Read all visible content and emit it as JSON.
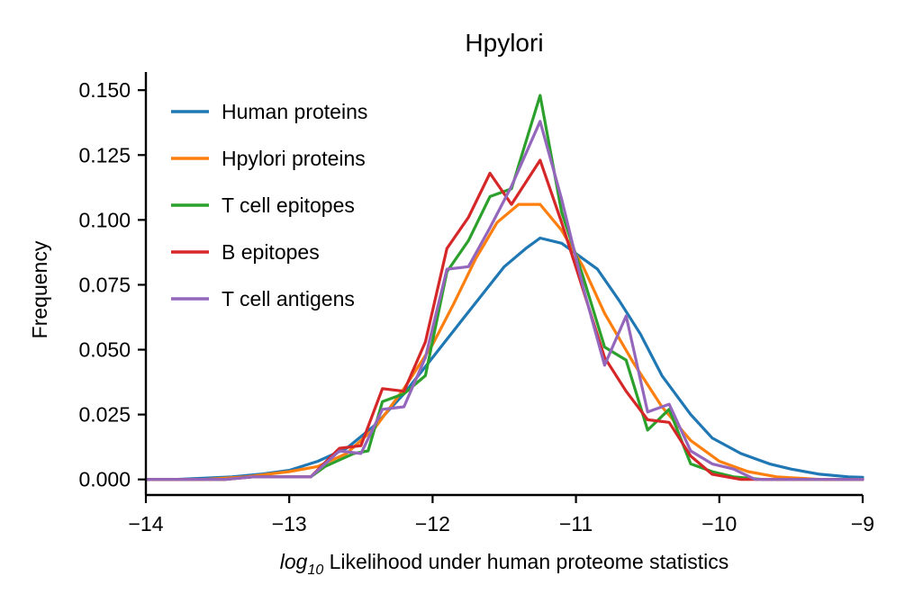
{
  "chart_data": {
    "type": "line",
    "title": "Hpylori",
    "xlabel_prefix": "log",
    "xlabel_sub": "10",
    "xlabel_rest": " Likelihood under human proteome statistics",
    "ylabel": "Frequency",
    "xlim": [
      -14,
      -9
    ],
    "ylim": [
      -0.006,
      0.157
    ],
    "xticks": [
      -14,
      -13,
      -12,
      -11,
      -10,
      -9
    ],
    "xtick_labels": [
      "−14",
      "−13",
      "−12",
      "−11",
      "−10",
      "−9"
    ],
    "yticks": [
      0.0,
      0.025,
      0.05,
      0.075,
      0.1,
      0.125,
      0.15
    ],
    "ytick_labels": [
      "0.000",
      "0.025",
      "0.050",
      "0.075",
      "0.100",
      "0.125",
      "0.150"
    ],
    "grid": false,
    "legend_position": "top-left",
    "series": [
      {
        "name": "Human proteins",
        "color": "#1f77b4",
        "points": [
          [
            -14.0,
            0.0
          ],
          [
            -13.8,
            0.0
          ],
          [
            -13.6,
            0.0005
          ],
          [
            -13.4,
            0.001
          ],
          [
            -13.2,
            0.002
          ],
          [
            -13.0,
            0.0035
          ],
          [
            -12.8,
            0.007
          ],
          [
            -12.6,
            0.012
          ],
          [
            -12.4,
            0.021
          ],
          [
            -12.2,
            0.033
          ],
          [
            -12.0,
            0.047
          ],
          [
            -11.8,
            0.061
          ],
          [
            -11.6,
            0.075
          ],
          [
            -11.5,
            0.082
          ],
          [
            -11.35,
            0.089
          ],
          [
            -11.25,
            0.093
          ],
          [
            -11.1,
            0.091
          ],
          [
            -11.0,
            0.087
          ],
          [
            -10.85,
            0.081
          ],
          [
            -10.7,
            0.069
          ],
          [
            -10.55,
            0.056
          ],
          [
            -10.4,
            0.04
          ],
          [
            -10.2,
            0.025
          ],
          [
            -10.05,
            0.016
          ],
          [
            -9.85,
            0.01
          ],
          [
            -9.65,
            0.006
          ],
          [
            -9.5,
            0.004
          ],
          [
            -9.3,
            0.002
          ],
          [
            -9.1,
            0.001
          ],
          [
            -9.0,
            0.0008
          ]
        ]
      },
      {
        "name": "Hpylori proteins",
        "color": "#ff7f0e",
        "points": [
          [
            -14.0,
            0.0
          ],
          [
            -13.6,
            0.0
          ],
          [
            -13.3,
            0.001
          ],
          [
            -13.0,
            0.003
          ],
          [
            -12.8,
            0.005
          ],
          [
            -12.6,
            0.01
          ],
          [
            -12.4,
            0.02
          ],
          [
            -12.2,
            0.035
          ],
          [
            -12.0,
            0.052
          ],
          [
            -11.85,
            0.068
          ],
          [
            -11.7,
            0.085
          ],
          [
            -11.55,
            0.099
          ],
          [
            -11.4,
            0.106
          ],
          [
            -11.25,
            0.106
          ],
          [
            -11.1,
            0.096
          ],
          [
            -10.95,
            0.082
          ],
          [
            -10.8,
            0.064
          ],
          [
            -10.6,
            0.045
          ],
          [
            -10.4,
            0.028
          ],
          [
            -10.2,
            0.015
          ],
          [
            -10.0,
            0.007
          ],
          [
            -9.8,
            0.003
          ],
          [
            -9.6,
            0.001
          ],
          [
            -9.3,
            0.0
          ],
          [
            -9.0,
            0.0
          ]
        ]
      },
      {
        "name": "T cell epitopes",
        "color": "#2ca02c",
        "points": [
          [
            -14.0,
            0.0
          ],
          [
            -13.45,
            0.0
          ],
          [
            -13.25,
            0.001
          ],
          [
            -12.85,
            0.001
          ],
          [
            -12.75,
            0.005
          ],
          [
            -12.55,
            0.01
          ],
          [
            -12.45,
            0.011
          ],
          [
            -12.35,
            0.03
          ],
          [
            -12.2,
            0.033
          ],
          [
            -12.05,
            0.04
          ],
          [
            -11.9,
            0.08
          ],
          [
            -11.75,
            0.092
          ],
          [
            -11.6,
            0.109
          ],
          [
            -11.45,
            0.112
          ],
          [
            -11.25,
            0.148
          ],
          [
            -11.1,
            0.103
          ],
          [
            -10.95,
            0.078
          ],
          [
            -10.8,
            0.051
          ],
          [
            -10.65,
            0.046
          ],
          [
            -10.5,
            0.019
          ],
          [
            -10.35,
            0.027
          ],
          [
            -10.2,
            0.006
          ],
          [
            -10.05,
            0.003
          ],
          [
            -9.9,
            0.001
          ],
          [
            -9.7,
            0.0
          ],
          [
            -9.0,
            0.0
          ]
        ]
      },
      {
        "name": "B epitopes",
        "color": "#d62728",
        "points": [
          [
            -14.0,
            0.0
          ],
          [
            -13.45,
            0.0
          ],
          [
            -13.25,
            0.001
          ],
          [
            -12.85,
            0.001
          ],
          [
            -12.65,
            0.012
          ],
          [
            -12.5,
            0.013
          ],
          [
            -12.35,
            0.035
          ],
          [
            -12.2,
            0.034
          ],
          [
            -12.05,
            0.053
          ],
          [
            -11.9,
            0.089
          ],
          [
            -11.75,
            0.101
          ],
          [
            -11.6,
            0.118
          ],
          [
            -11.45,
            0.106
          ],
          [
            -11.25,
            0.123
          ],
          [
            -11.1,
            0.099
          ],
          [
            -10.95,
            0.073
          ],
          [
            -10.8,
            0.047
          ],
          [
            -10.65,
            0.034
          ],
          [
            -10.5,
            0.023
          ],
          [
            -10.35,
            0.022
          ],
          [
            -10.2,
            0.009
          ],
          [
            -10.05,
            0.002
          ],
          [
            -9.85,
            0.0
          ],
          [
            -9.0,
            0.0
          ]
        ]
      },
      {
        "name": "T cell antigens",
        "color": "#9467bd",
        "points": [
          [
            -14.0,
            0.0
          ],
          [
            -13.45,
            0.0
          ],
          [
            -13.25,
            0.001
          ],
          [
            -12.85,
            0.001
          ],
          [
            -12.65,
            0.011
          ],
          [
            -12.5,
            0.01
          ],
          [
            -12.35,
            0.027
          ],
          [
            -12.2,
            0.028
          ],
          [
            -12.05,
            0.047
          ],
          [
            -11.9,
            0.081
          ],
          [
            -11.75,
            0.082
          ],
          [
            -11.6,
            0.097
          ],
          [
            -11.45,
            0.113
          ],
          [
            -11.25,
            0.138
          ],
          [
            -11.1,
            0.108
          ],
          [
            -10.95,
            0.074
          ],
          [
            -10.8,
            0.044
          ],
          [
            -10.65,
            0.063
          ],
          [
            -10.5,
            0.026
          ],
          [
            -10.35,
            0.029
          ],
          [
            -10.2,
            0.011
          ],
          [
            -10.05,
            0.006
          ],
          [
            -9.9,
            0.004
          ],
          [
            -9.75,
            0.0
          ],
          [
            -9.0,
            0.0
          ]
        ]
      }
    ]
  }
}
